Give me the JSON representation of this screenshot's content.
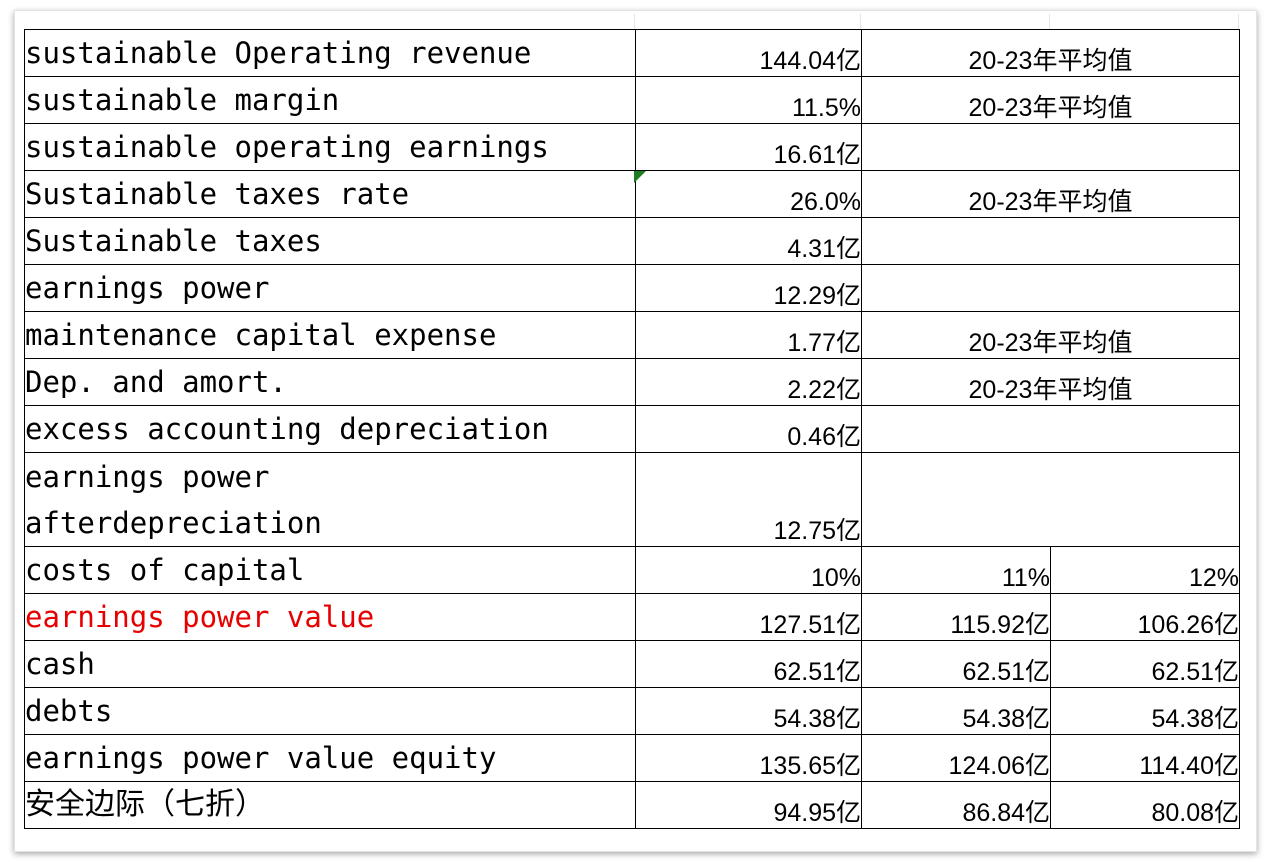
{
  "rows": [
    {
      "label": "sustainable Operating revenue",
      "value": "144.04亿",
      "note": "20-23年平均值"
    },
    {
      "label": "sustainable margin",
      "value": "11.5%",
      "note": "20-23年平均值"
    },
    {
      "label": "sustainable operating earnings",
      "value": "16.61亿",
      "note": ""
    },
    {
      "label": "Sustainable taxes rate",
      "value": "26.0%",
      "note": "20-23年平均值"
    },
    {
      "label": "Sustainable taxes",
      "value": "4.31亿",
      "note": ""
    },
    {
      "label": "earnings power",
      "value": "12.29亿",
      "note": ""
    },
    {
      "label": "maintenance capital expense",
      "value": "1.77亿",
      "note": "20-23年平均值"
    },
    {
      "label": "Dep. and amort.",
      "value": "2.22亿",
      "note": "20-23年平均值"
    },
    {
      "label": "excess accounting depreciation",
      "value": "0.46亿",
      "note": ""
    },
    {
      "label_line1": "earnings power",
      "label_line2": "afterdepreciation",
      "value": "12.75亿",
      "note": ""
    }
  ],
  "scenarios": [
    {
      "label": "costs of capital",
      "values": [
        "10%",
        "11%",
        "12%"
      ]
    },
    {
      "label": "earnings power value",
      "values": [
        "127.51亿",
        "115.92亿",
        "106.26亿"
      ]
    },
    {
      "label": "cash",
      "values": [
        "62.51亿",
        "62.51亿",
        "62.51亿"
      ]
    },
    {
      "label": "debts",
      "values": [
        "54.38亿",
        "54.38亿",
        "54.38亿"
      ]
    },
    {
      "label": "earnings power value equity",
      "values": [
        "135.65亿",
        "124.06亿",
        "114.40亿"
      ]
    },
    {
      "label": "安全边际（七折）",
      "values": [
        "94.95亿",
        "86.84亿",
        "80.08亿"
      ]
    }
  ],
  "colors": {
    "highlight_label": "#e60000",
    "comment_marker": "#1e7d1e"
  }
}
